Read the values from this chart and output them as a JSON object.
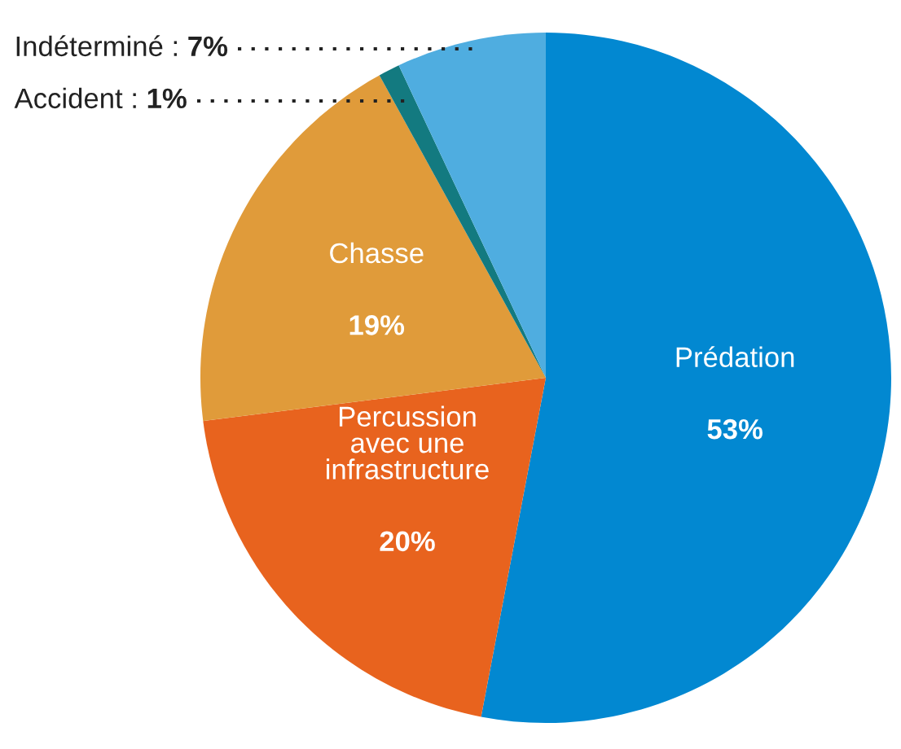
{
  "chart_data": {
    "type": "pie",
    "categories": [
      "Prédation",
      "Percussion\navec une\ninfrastructure",
      "Chasse",
      "Accident",
      "Indéterminé"
    ],
    "values": [
      53,
      20,
      19,
      1,
      7
    ],
    "value_labels": [
      "53%",
      "20%",
      "19%",
      "1%",
      "7%"
    ],
    "colors": [
      "#0288d1",
      "#e8631e",
      "#e09b3a",
      "#137a80",
      "#4fade0"
    ],
    "legend": false
  }
}
